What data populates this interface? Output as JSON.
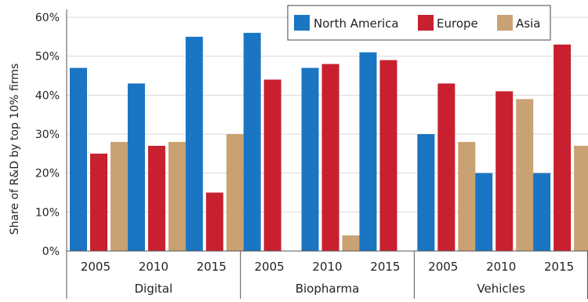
{
  "chart_data": {
    "type": "bar",
    "ylabel": "Share of R&D by top 10% firms",
    "ylim": [
      0,
      60
    ],
    "yticks": [
      0,
      10,
      20,
      30,
      40,
      50,
      60
    ],
    "ytick_labels": [
      "0%",
      "10%",
      "20%",
      "30%",
      "40%",
      "50%",
      "60%"
    ],
    "grid": true,
    "legend_position": "top-right",
    "colors": {
      "North America": "#1A75C2",
      "Europe": "#C8202F",
      "Asia": "#C9A173"
    },
    "sectors": [
      {
        "label": "Digital",
        "years": [
          "2005",
          "2010",
          "2015"
        ]
      },
      {
        "label": "Biopharma",
        "years": [
          "2005",
          "2010",
          "2015"
        ]
      },
      {
        "label": "Vehicles",
        "years": [
          "2005",
          "2010",
          "2015"
        ]
      }
    ],
    "categories": [
      "Digital 2005",
      "Digital 2010",
      "Digital 2015",
      "Biopharma 2005",
      "Biopharma 2010",
      "Biopharma 2015",
      "Vehicles 2005",
      "Vehicles 2010",
      "Vehicles 2015"
    ],
    "series": [
      {
        "name": "North America",
        "values": [
          47,
          43,
          55,
          56,
          47,
          51,
          30,
          20,
          20
        ]
      },
      {
        "name": "Europe",
        "values": [
          25,
          27,
          15,
          44,
          48,
          49,
          43,
          41,
          53
        ]
      },
      {
        "name": "Asia",
        "values": [
          28,
          28,
          30,
          null,
          4,
          null,
          28,
          39,
          27
        ]
      }
    ]
  }
}
